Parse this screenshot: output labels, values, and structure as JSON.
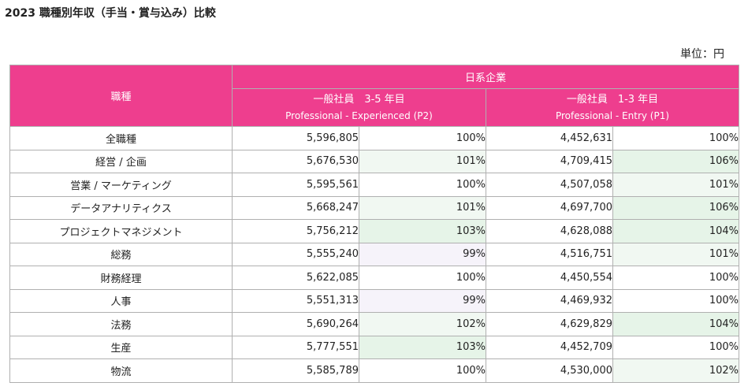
{
  "title": "2023 職種別年収（手当・賞与込み）比較",
  "unit_label": "単位：円",
  "header": {
    "job_col": "職種",
    "group": "日系企業",
    "col_a": {
      "ja": "一般社員　3-5 年目",
      "en": "Professional - Experienced (P2)"
    },
    "col_b": {
      "ja": "一般社員　1-3 年目",
      "en": "Professional - Entry (P1)"
    }
  },
  "rows": [
    {
      "job": "全職種",
      "a_amount": "5,596,805",
      "a_pct": "100%",
      "b_amount": "4,452,631",
      "b_pct": "100%"
    },
    {
      "job": "経営 / 企画",
      "a_amount": "5,676,530",
      "a_pct": "101%",
      "b_amount": "4,709,415",
      "b_pct": "106%"
    },
    {
      "job": "営業 / マーケティング",
      "a_amount": "5,595,561",
      "a_pct": "100%",
      "b_amount": "4,507,058",
      "b_pct": "101%"
    },
    {
      "job": "データアナリティクス",
      "a_amount": "5,668,247",
      "a_pct": "101%",
      "b_amount": "4,697,700",
      "b_pct": "106%"
    },
    {
      "job": "プロジェクトマネジメント",
      "a_amount": "5,756,212",
      "a_pct": "103%",
      "b_amount": "4,628,088",
      "b_pct": "104%"
    },
    {
      "job": "総務",
      "a_amount": "5,555,240",
      "a_pct": "99%",
      "b_amount": "4,516,751",
      "b_pct": "101%"
    },
    {
      "job": "財務経理",
      "a_amount": "5,622,085",
      "a_pct": "100%",
      "b_amount": "4,450,554",
      "b_pct": "100%"
    },
    {
      "job": "人事",
      "a_amount": "5,551,313",
      "a_pct": "99%",
      "b_amount": "4,469,932",
      "b_pct": "100%"
    },
    {
      "job": "法務",
      "a_amount": "5,690,264",
      "a_pct": "102%",
      "b_amount": "4,629,829",
      "b_pct": "104%"
    },
    {
      "job": "生産",
      "a_amount": "5,777,551",
      "a_pct": "103%",
      "b_amount": "4,452,709",
      "b_pct": "100%"
    },
    {
      "job": "物流",
      "a_amount": "5,585,789",
      "a_pct": "100%",
      "b_amount": "4,530,000",
      "b_pct": "102%"
    }
  ],
  "colors": {
    "header_bg": "#ee3e8e",
    "header_text": "#ffffff",
    "pct_below": "#f6f3fa",
    "pct_slightly_above": "#f1f8f2",
    "pct_above": "#e6f4e8"
  }
}
